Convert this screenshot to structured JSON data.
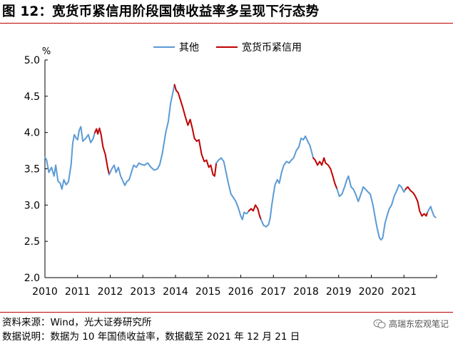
{
  "figure": {
    "title": "图 12：宽货币紧信用阶段国债收益率多呈现下行态势",
    "source": "资料来源：Wind，光大证券研究所",
    "note": "数据说明：数据为 10 年国债收益率，数据截至 2021 年 12 月 21 日",
    "watermark": "高瑞东宏观笔记"
  },
  "colors": {
    "other": "#5b9bd5",
    "loose": "#c00000",
    "axis": "#000000",
    "rule": "#c00000"
  },
  "chart_data": {
    "type": "line",
    "ylabel": "%",
    "ylim": [
      2.0,
      5.0
    ],
    "yticks": [
      "2.0",
      "2.5",
      "3.0",
      "3.5",
      "4.0",
      "4.5",
      "5.0"
    ],
    "xlim": [
      2010.0,
      2022.0
    ],
    "xticks": [
      "2010",
      "2011",
      "2012",
      "2013",
      "2014",
      "2015",
      "2016",
      "2017",
      "2018",
      "2019",
      "2020",
      "2021"
    ],
    "grid": false,
    "legend_position": "top-center",
    "series": [
      {
        "name": "其他",
        "color_key": "other",
        "points": [
          [
            2010.0,
            3.66
          ],
          [
            2010.05,
            3.62
          ],
          [
            2010.12,
            3.45
          ],
          [
            2010.2,
            3.52
          ],
          [
            2010.28,
            3.4
          ],
          [
            2010.33,
            3.55
          ],
          [
            2010.4,
            3.33
          ],
          [
            2010.47,
            3.3
          ],
          [
            2010.52,
            3.22
          ],
          [
            2010.58,
            3.35
          ],
          [
            2010.65,
            3.28
          ],
          [
            2010.72,
            3.32
          ],
          [
            2010.8,
            3.55
          ],
          [
            2010.85,
            3.85
          ],
          [
            2010.9,
            3.97
          ],
          [
            2010.96,
            3.92
          ],
          [
            2011.0,
            3.9
          ],
          [
            2011.05,
            4.03
          ],
          [
            2011.1,
            4.08
          ],
          [
            2011.16,
            3.88
          ],
          [
            2011.25,
            3.92
          ],
          [
            2011.33,
            3.97
          ],
          [
            2011.4,
            3.86
          ],
          [
            2011.47,
            3.91
          ],
          [
            2011.53,
            4.0
          ]
        ]
      },
      {
        "name": "宽货币紧信用",
        "color_key": "loose",
        "points": [
          [
            2011.53,
            4.0
          ],
          [
            2011.58,
            4.05
          ],
          [
            2011.62,
            3.98
          ],
          [
            2011.67,
            4.06
          ],
          [
            2011.72,
            3.97
          ],
          [
            2011.78,
            3.8
          ],
          [
            2011.85,
            3.7
          ],
          [
            2011.92,
            3.52
          ],
          [
            2011.97,
            3.42
          ]
        ]
      },
      {
        "name": "其他",
        "color_key": "other",
        "points": [
          [
            2011.97,
            3.42
          ],
          [
            2012.05,
            3.5
          ],
          [
            2012.12,
            3.55
          ],
          [
            2012.18,
            3.45
          ],
          [
            2012.25,
            3.52
          ],
          [
            2012.32,
            3.4
          ],
          [
            2012.4,
            3.32
          ],
          [
            2012.45,
            3.27
          ],
          [
            2012.5,
            3.32
          ],
          [
            2012.58,
            3.35
          ],
          [
            2012.65,
            3.45
          ],
          [
            2012.72,
            3.55
          ],
          [
            2012.8,
            3.52
          ],
          [
            2012.88,
            3.58
          ],
          [
            2012.95,
            3.56
          ],
          [
            2013.05,
            3.55
          ],
          [
            2013.15,
            3.58
          ],
          [
            2013.25,
            3.52
          ],
          [
            2013.35,
            3.48
          ],
          [
            2013.45,
            3.5
          ],
          [
            2013.52,
            3.56
          ],
          [
            2013.6,
            3.72
          ],
          [
            2013.7,
            4.0
          ],
          [
            2013.78,
            4.15
          ],
          [
            2013.85,
            4.4
          ],
          [
            2013.92,
            4.55
          ],
          [
            2013.97,
            4.66
          ]
        ]
      },
      {
        "name": "宽货币紧信用",
        "color_key": "loose",
        "points": [
          [
            2013.97,
            4.66
          ],
          [
            2014.02,
            4.58
          ],
          [
            2014.08,
            4.55
          ],
          [
            2014.15,
            4.45
          ],
          [
            2014.22,
            4.35
          ],
          [
            2014.3,
            4.22
          ],
          [
            2014.38,
            4.1
          ],
          [
            2014.45,
            4.18
          ],
          [
            2014.52,
            4.05
          ],
          [
            2014.58,
            3.92
          ],
          [
            2014.65,
            3.88
          ],
          [
            2014.72,
            3.9
          ],
          [
            2014.8,
            3.7
          ],
          [
            2014.88,
            3.6
          ],
          [
            2014.95,
            3.62
          ],
          [
            2015.02,
            3.52
          ],
          [
            2015.08,
            3.55
          ],
          [
            2015.15,
            3.42
          ],
          [
            2015.2,
            3.4
          ],
          [
            2015.25,
            3.58
          ]
        ]
      },
      {
        "name": "其他",
        "color_key": "other",
        "points": [
          [
            2015.25,
            3.58
          ],
          [
            2015.32,
            3.62
          ],
          [
            2015.4,
            3.65
          ],
          [
            2015.48,
            3.6
          ],
          [
            2015.55,
            3.45
          ],
          [
            2015.62,
            3.3
          ],
          [
            2015.7,
            3.15
          ],
          [
            2015.78,
            3.1
          ],
          [
            2015.85,
            3.05
          ],
          [
            2015.92,
            2.97
          ],
          [
            2016.0,
            2.85
          ],
          [
            2016.05,
            2.8
          ],
          [
            2016.1,
            2.9
          ],
          [
            2016.18,
            2.88
          ],
          [
            2016.25,
            2.92
          ]
        ]
      },
      {
        "name": "宽货币紧信用",
        "color_key": "loose",
        "points": [
          [
            2016.25,
            2.92
          ],
          [
            2016.32,
            2.95
          ],
          [
            2016.38,
            2.92
          ],
          [
            2016.45,
            3.0
          ],
          [
            2016.52,
            2.95
          ],
          [
            2016.58,
            2.85
          ],
          [
            2016.62,
            2.8
          ]
        ]
      },
      {
        "name": "其他",
        "color_key": "other",
        "points": [
          [
            2016.62,
            2.8
          ],
          [
            2016.7,
            2.72
          ],
          [
            2016.78,
            2.7
          ],
          [
            2016.85,
            2.73
          ],
          [
            2016.9,
            2.82
          ],
          [
            2016.95,
            3.0
          ],
          [
            2017.0,
            3.15
          ],
          [
            2017.05,
            3.28
          ],
          [
            2017.12,
            3.35
          ],
          [
            2017.18,
            3.3
          ],
          [
            2017.25,
            3.45
          ],
          [
            2017.32,
            3.55
          ],
          [
            2017.4,
            3.6
          ],
          [
            2017.48,
            3.58
          ],
          [
            2017.55,
            3.62
          ],
          [
            2017.62,
            3.65
          ],
          [
            2017.7,
            3.75
          ],
          [
            2017.78,
            3.8
          ],
          [
            2017.85,
            3.92
          ],
          [
            2017.92,
            3.9
          ],
          [
            2017.98,
            3.95
          ],
          [
            2018.05,
            3.88
          ],
          [
            2018.12,
            3.82
          ],
          [
            2018.18,
            3.72
          ],
          [
            2018.22,
            3.65
          ]
        ]
      },
      {
        "name": "宽货币紧信用",
        "color_key": "loose",
        "points": [
          [
            2018.22,
            3.65
          ],
          [
            2018.28,
            3.62
          ],
          [
            2018.35,
            3.55
          ],
          [
            2018.42,
            3.6
          ],
          [
            2018.48,
            3.55
          ],
          [
            2018.55,
            3.65
          ],
          [
            2018.6,
            3.58
          ],
          [
            2018.68,
            3.55
          ],
          [
            2018.75,
            3.5
          ],
          [
            2018.82,
            3.4
          ],
          [
            2018.88,
            3.3
          ],
          [
            2018.95,
            3.22
          ]
        ]
      },
      {
        "name": "其他",
        "color_key": "other",
        "points": [
          [
            2018.95,
            3.22
          ],
          [
            2019.02,
            3.12
          ],
          [
            2019.1,
            3.15
          ],
          [
            2019.18,
            3.25
          ],
          [
            2019.25,
            3.35
          ],
          [
            2019.3,
            3.4
          ],
          [
            2019.38,
            3.25
          ],
          [
            2019.45,
            3.22
          ],
          [
            2019.52,
            3.15
          ],
          [
            2019.6,
            3.05
          ],
          [
            2019.68,
            3.15
          ],
          [
            2019.75,
            3.25
          ],
          [
            2019.82,
            3.22
          ],
          [
            2019.9,
            3.18
          ],
          [
            2019.97,
            3.15
          ],
          [
            2020.05,
            3.0
          ],
          [
            2020.12,
            2.82
          ],
          [
            2020.18,
            2.68
          ],
          [
            2020.25,
            2.55
          ],
          [
            2020.3,
            2.52
          ],
          [
            2020.35,
            2.55
          ],
          [
            2020.42,
            2.75
          ],
          [
            2020.48,
            2.85
          ],
          [
            2020.55,
            2.95
          ],
          [
            2020.62,
            3.0
          ],
          [
            2020.7,
            3.12
          ],
          [
            2020.78,
            3.2
          ],
          [
            2020.85,
            3.28
          ],
          [
            2020.92,
            3.25
          ],
          [
            2021.0,
            3.18
          ],
          [
            2021.05,
            3.22
          ]
        ]
      },
      {
        "name": "宽货币紧信用",
        "color_key": "loose",
        "points": [
          [
            2021.05,
            3.22
          ],
          [
            2021.12,
            3.25
          ],
          [
            2021.2,
            3.2
          ],
          [
            2021.28,
            3.17
          ],
          [
            2021.35,
            3.12
          ],
          [
            2021.42,
            3.05
          ],
          [
            2021.48,
            2.92
          ],
          [
            2021.55,
            2.85
          ],
          [
            2021.62,
            2.88
          ],
          [
            2021.68,
            2.85
          ],
          [
            2021.72,
            2.9
          ]
        ]
      },
      {
        "name": "其他",
        "color_key": "other",
        "points": [
          [
            2021.72,
            2.9
          ],
          [
            2021.78,
            2.95
          ],
          [
            2021.82,
            2.98
          ],
          [
            2021.86,
            2.92
          ],
          [
            2021.92,
            2.85
          ],
          [
            2021.97,
            2.83
          ]
        ]
      }
    ],
    "legend": [
      {
        "label": "其他",
        "color_key": "other"
      },
      {
        "label": "宽货币紧信用",
        "color_key": "loose"
      }
    ]
  }
}
